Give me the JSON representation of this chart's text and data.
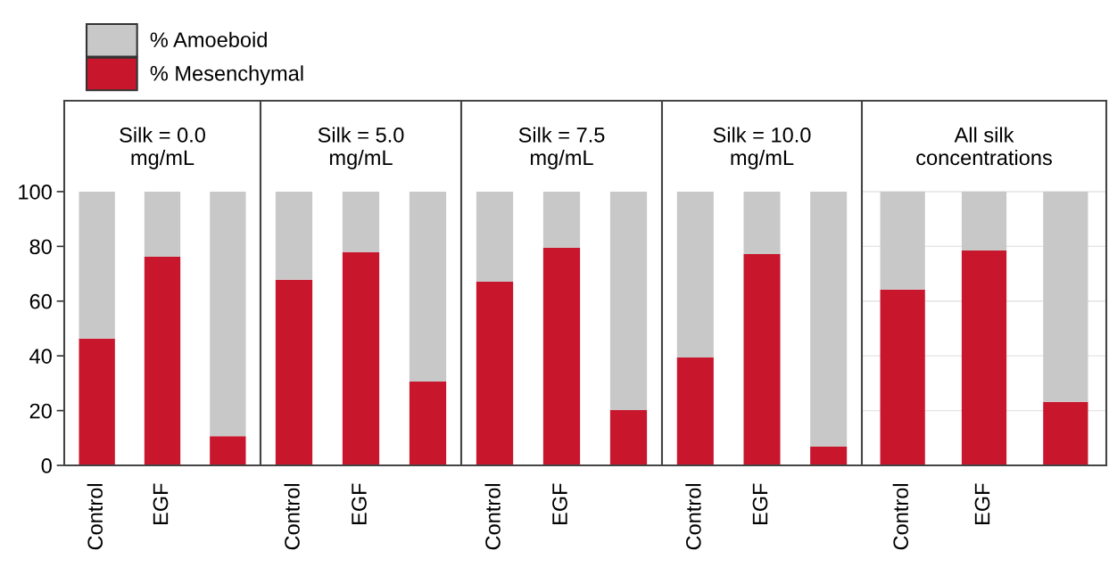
{
  "chart_data": [
    {
      "type": "bar",
      "stacked": true,
      "title": "Silk = 0.0\nmg/mL",
      "categories": [
        "Control",
        "EGF",
        null
      ],
      "legend": "top",
      "ylim": [
        0,
        133.2
      ],
      "yticks": [
        0,
        20,
        40,
        60,
        80,
        100
      ],
      "series": [
        {
          "name": "% Mesenchymal",
          "color": "#c8172d",
          "values": [
            46.3,
            76.2,
            10.7
          ]
        },
        {
          "name": "% Amoeboid",
          "color": "#c8c8c8",
          "values": [
            53.7,
            23.8,
            89.3
          ]
        }
      ]
    },
    {
      "type": "bar",
      "stacked": true,
      "title": "Silk = 5.0\nmg/mL",
      "categories": [
        "Control",
        "EGF",
        null
      ],
      "ylim": [
        0,
        133.2
      ],
      "tick_labels": "x",
      "series": [
        {
          "color": "#c8172d",
          "values": [
            67.8,
            77.9,
            30.6
          ]
        },
        {
          "color": "#c8c8c8",
          "values": [
            32.2,
            22.1,
            69.4
          ]
        }
      ]
    },
    {
      "type": "bar",
      "stacked": true,
      "title": "Silk = 7.5\nmg/mL",
      "categories": [
        "Control",
        "EGF",
        null
      ],
      "ylim": [
        0,
        133.2
      ],
      "tick_labels": "x",
      "series": [
        {
          "color": "#c8172d",
          "values": [
            67.1,
            79.5,
            20.2
          ]
        },
        {
          "color": "#c8c8c8",
          "values": [
            32.9,
            20.5,
            79.8
          ]
        }
      ]
    },
    {
      "type": "bar",
      "stacked": true,
      "title": "Silk = 10.0\nmg/mL",
      "categories": [
        "Control",
        "EGF",
        null
      ],
      "ylim": [
        0,
        133.2
      ],
      "tick_labels": "x",
      "series": [
        {
          "color": "#c8172d",
          "values": [
            39.4,
            77.2,
            6.8
          ]
        },
        {
          "color": "#c8c8c8",
          "values": [
            60.6,
            22.8,
            93.2
          ]
        }
      ]
    },
    {
      "type": "bar",
      "stacked": true,
      "title": "All silk\nconcentrations",
      "categories": [
        "Control",
        "EGF",
        null
      ],
      "ylim": [
        0,
        133.2
      ],
      "yticks": [
        {
          "value": 20,
          "label": null
        },
        {
          "value": 40,
          "label": null
        },
        {
          "value": 60,
          "label": null
        },
        {
          "value": 80,
          "label": null
        },
        {
          "value": 100,
          "label": null
        }
      ],
      "grid": "y",
      "tick_labels": "x",
      "series": [
        {
          "color": "#c8172d",
          "values": [
            64.2,
            78.5,
            23.2
          ]
        },
        {
          "color": "#c8c8c8",
          "values": [
            35.8,
            21.5,
            76.8
          ]
        }
      ]
    }
  ]
}
